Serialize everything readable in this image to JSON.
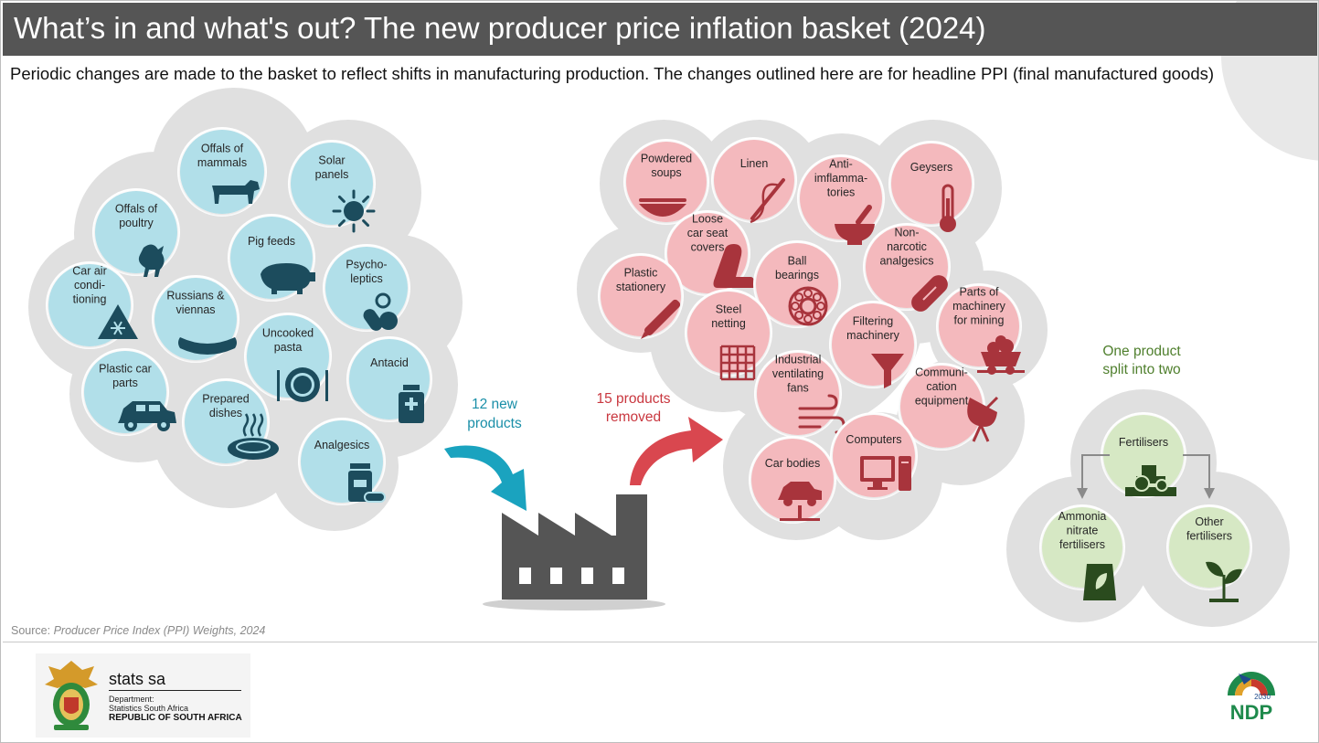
{
  "title": "What’s in and what's out? The new producer price inflation basket (2024)",
  "subtitle": "Periodic changes are made to the basket to reflect shifts in manufacturing production. The changes outlined here are for headline PPI (final manufactured goods)",
  "new_products": {
    "label_line1": "12 new",
    "label_line2": "products",
    "items": [
      {
        "lines": [
          "Offals of",
          "mammals"
        ],
        "icon": "cow-icon"
      },
      {
        "lines": [
          "Solar",
          "panels"
        ],
        "icon": "sun-icon"
      },
      {
        "lines": [
          "Offals of",
          "poultry"
        ],
        "icon": "chicken-icon"
      },
      {
        "lines": [
          "Pig feeds"
        ],
        "icon": "pig-icon"
      },
      {
        "lines": [
          "Psycho-",
          "leptics"
        ],
        "icon": "pills-icon"
      },
      {
        "lines": [
          "Car air",
          "condi-",
          "tioning"
        ],
        "icon": "snowflake-warning-icon"
      },
      {
        "lines": [
          "Russians &",
          "viennas"
        ],
        "icon": "sausage-icon"
      },
      {
        "lines": [
          "Uncooked",
          "pasta"
        ],
        "icon": "plate-cutlery-icon"
      },
      {
        "lines": [
          "Antacid"
        ],
        "icon": "medicine-bottle-icon"
      },
      {
        "lines": [
          "Plastic car",
          "parts"
        ],
        "icon": "car-icon"
      },
      {
        "lines": [
          "Prepared",
          "dishes"
        ],
        "icon": "hot-dish-icon"
      },
      {
        "lines": [
          "Analgesics"
        ],
        "icon": "medicine-jar-icon"
      }
    ]
  },
  "removed_products": {
    "label_line1": "15 products",
    "label_line2": "removed",
    "items": [
      {
        "lines": [
          "Powdered",
          "soups"
        ],
        "icon": "soup-bowl-icon"
      },
      {
        "lines": [
          "Linen"
        ],
        "icon": "needle-thread-icon"
      },
      {
        "lines": [
          "Anti-",
          "imflamma-",
          "tories"
        ],
        "icon": "mortar-pestle-icon"
      },
      {
        "lines": [
          "Geysers"
        ],
        "icon": "thermometer-icon"
      },
      {
        "lines": [
          "Loose",
          "car seat",
          "covers"
        ],
        "icon": "car-seat-icon"
      },
      {
        "lines": [
          "Ball",
          "bearings"
        ],
        "icon": "bearing-icon"
      },
      {
        "lines": [
          "Non-",
          "narcotic",
          "analgesics"
        ],
        "icon": "capsule-icon"
      },
      {
        "lines": [
          "Plastic",
          "stationery"
        ],
        "icon": "pen-icon"
      },
      {
        "lines": [
          "Steel",
          "netting"
        ],
        "icon": "grid-net-icon"
      },
      {
        "lines": [
          "Filtering",
          "machinery"
        ],
        "icon": "funnel-icon"
      },
      {
        "lines": [
          "Parts of",
          "machinery",
          "for mining"
        ],
        "icon": "mine-cart-icon"
      },
      {
        "lines": [
          "Industrial",
          "ventilating",
          "fans"
        ],
        "icon": "wind-icon"
      },
      {
        "lines": [
          "Communi-",
          "cation",
          "equipment"
        ],
        "icon": "satellite-dish-icon"
      },
      {
        "lines": [
          "Computers"
        ],
        "icon": "computer-icon"
      },
      {
        "lines": [
          "Car bodies"
        ],
        "icon": "car-lift-icon"
      }
    ]
  },
  "split": {
    "label_line1": "One product",
    "label_line2": "split into two",
    "parent": {
      "lines": [
        "Fertilisers"
      ],
      "icon": "tractor-icon"
    },
    "children": [
      {
        "lines": [
          "Ammonia",
          "nitrate",
          "fertilisers"
        ],
        "icon": "fertiliser-bag-icon"
      },
      {
        "lines": [
          "Other",
          "fertilisers"
        ],
        "icon": "seedling-icon"
      }
    ]
  },
  "source_prefix": "Source: ",
  "source_title": "Producer Price Index (PPI) Weights, 2024",
  "footer": {
    "org_name": "stats sa",
    "dept_line1": "Department:",
    "dept_line2": "Statistics South Africa",
    "country": "REPUBLIC OF SOUTH AFRICA",
    "ndp_text": "NDP",
    "ndp_year": "2030"
  },
  "colors": {
    "title_bar": "#555555",
    "cluster_bg": "#e0e0e0",
    "new_circle": "#b1dfe9",
    "new_icon": "#1c4c5d",
    "new_accent": "#1aa3bf",
    "removed_circle": "#f4b9bd",
    "removed_icon": "#a8343c",
    "removed_accent": "#d9474f",
    "split_circle": "#d6e8c4",
    "split_icon": "#2a4b1e",
    "split_text": "#4f7f2d",
    "factory": "#555555"
  }
}
